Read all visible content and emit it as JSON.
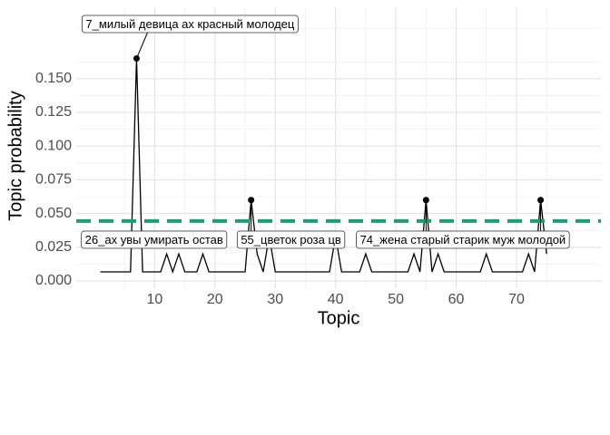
{
  "chart_data": {
    "type": "line",
    "x_label": "Topic",
    "y_label": "Topic probability",
    "x": [
      1,
      2,
      3,
      4,
      5,
      6,
      7,
      8,
      9,
      10,
      11,
      12,
      13,
      14,
      15,
      16,
      17,
      18,
      19,
      20,
      21,
      22,
      23,
      24,
      25,
      26,
      27,
      28,
      29,
      30,
      31,
      32,
      33,
      34,
      35,
      36,
      37,
      38,
      39,
      40,
      41,
      42,
      43,
      44,
      45,
      46,
      47,
      48,
      49,
      50,
      51,
      52,
      53,
      54,
      55,
      56,
      57,
      58,
      59,
      60,
      61,
      62,
      63,
      64,
      65,
      66,
      67,
      68,
      69,
      70,
      71,
      72,
      73,
      74,
      75
    ],
    "series": [
      {
        "color": "#000000",
        "values": [
          0.0067,
          0.0067,
          0.0067,
          0.0067,
          0.0067,
          0.0067,
          0.165,
          0.0067,
          0.0067,
          0.0067,
          0.0067,
          0.02,
          0.0067,
          0.02,
          0.0067,
          0.0067,
          0.0067,
          0.02,
          0.0067,
          0.0067,
          0.0067,
          0.0067,
          0.0067,
          0.0067,
          0.0067,
          0.06,
          0.02,
          0.0067,
          0.033,
          0.0067,
          0.0067,
          0.0067,
          0.0067,
          0.0067,
          0.0067,
          0.0067,
          0.0067,
          0.0067,
          0.0067,
          0.033,
          0.0067,
          0.0067,
          0.0067,
          0.0067,
          0.02,
          0.0067,
          0.0067,
          0.0067,
          0.0067,
          0.0067,
          0.0067,
          0.0067,
          0.02,
          0.0067,
          0.06,
          0.0067,
          0.02,
          0.0067,
          0.0067,
          0.0067,
          0.0067,
          0.0067,
          0.0067,
          0.0067,
          0.02,
          0.0067,
          0.0067,
          0.0067,
          0.0067,
          0.0067,
          0.0067,
          0.02,
          0.0067,
          0.06,
          0.02
        ]
      }
    ],
    "hline": {
      "value": 0.0444,
      "color": "#1b9e77"
    },
    "annotations": [
      {
        "x": 7,
        "text": "7_милый девица ах красный молодец"
      },
      {
        "x": 26,
        "text": "26_ах увы умирать остав"
      },
      {
        "x": 55,
        "text": "55_цветок роза цв"
      },
      {
        "x": 74,
        "text": "74_жена старый старик муж молодой"
      }
    ],
    "xlim": [
      -3,
      84
    ],
    "xticks": [
      10,
      20,
      30,
      40,
      50,
      60,
      70
    ],
    "ylim": [
      -0.0054,
      0.203
    ],
    "yticks": [
      {
        "value": 0,
        "label": "0.000"
      },
      0.025,
      {
        "value": 0.05,
        "label": "0.050"
      },
      0.075,
      {
        "value": 0.1,
        "label": "0.100"
      },
      0.125,
      {
        "value": 0.15,
        "label": "0.150"
      }
    ],
    "grid": true
  }
}
